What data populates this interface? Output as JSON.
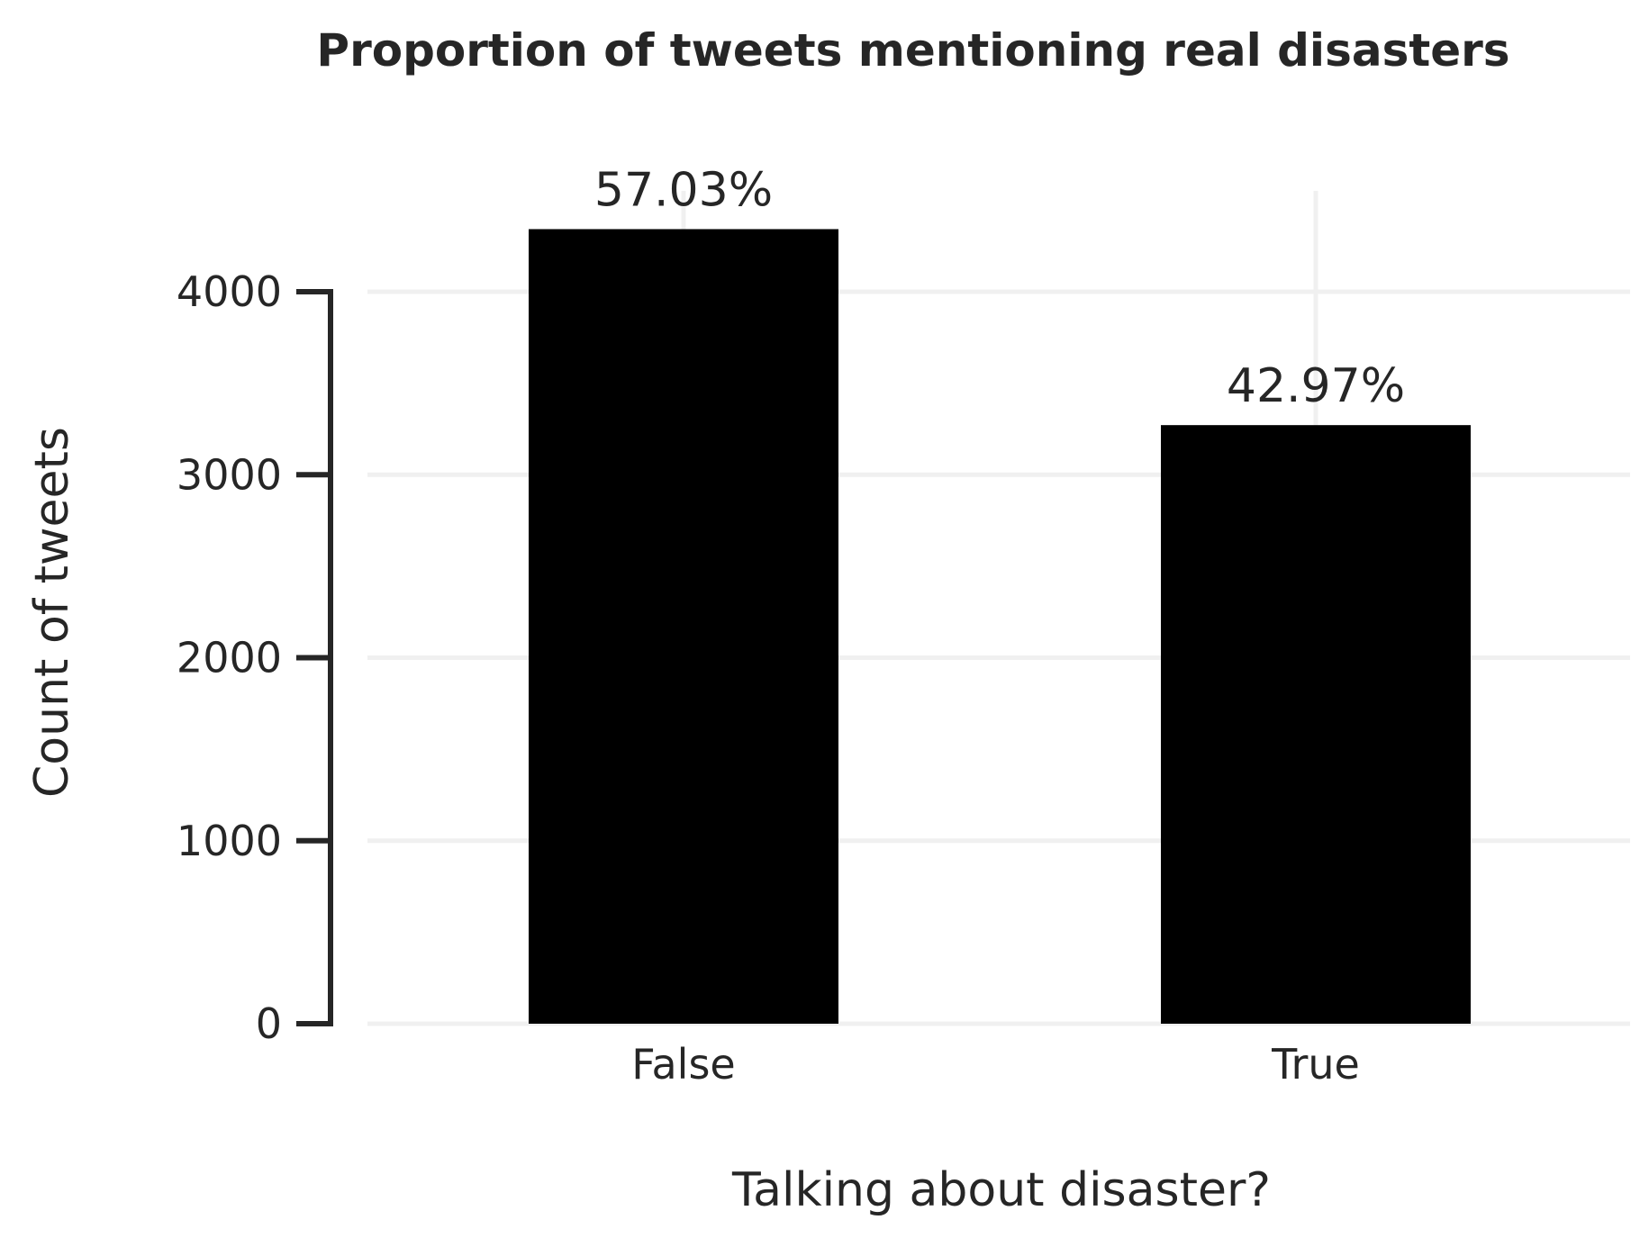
{
  "chart_data": {
    "type": "bar",
    "title": "Proportion of tweets mentioning real disasters",
    "xlabel": "Talking about disaster?",
    "ylabel": "Count of tweets",
    "categories": [
      "False",
      "True"
    ],
    "values": [
      4342,
      3271
    ],
    "data_labels": [
      "57.03%",
      "42.97%"
    ],
    "ylim": [
      0,
      4500
    ],
    "yticks": [
      0,
      1000,
      2000,
      3000,
      4000
    ],
    "ytick_labels": [
      "0",
      "1000",
      "2000",
      "3000",
      "4000"
    ],
    "grid": true,
    "bar_color": "#000000",
    "grid_color": "#f0f0f0",
    "text_color": "#262626"
  }
}
